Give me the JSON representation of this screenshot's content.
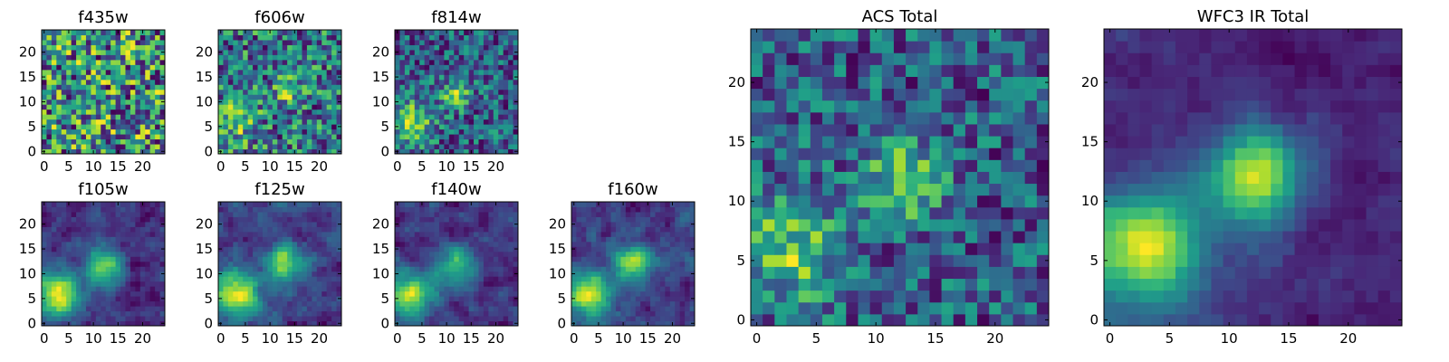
{
  "chart_data": [
    {
      "type": "heatmap",
      "title": "f435w",
      "colormap": "viridis",
      "xlim": [
        -0.5,
        24.5
      ],
      "ylim": [
        -0.5,
        24.5
      ],
      "xticks": [
        0,
        5,
        10,
        15,
        20
      ],
      "yticks": [
        0,
        5,
        10,
        15,
        20
      ],
      "peaks": [],
      "noise": 1.0,
      "smooth": 0,
      "grid": false
    },
    {
      "type": "heatmap",
      "title": "f606w",
      "colormap": "viridis",
      "xlim": [
        -0.5,
        24.5
      ],
      "ylim": [
        -0.5,
        24.5
      ],
      "xticks": [
        0,
        5,
        10,
        15,
        20
      ],
      "yticks": [
        0,
        5,
        10,
        15,
        20
      ],
      "peaks": [
        [
          3,
          6,
          0.35,
          3.0
        ],
        [
          13,
          12,
          0.3,
          2.0
        ]
      ],
      "noise": 0.85,
      "smooth": 0,
      "grid": false
    },
    {
      "type": "heatmap",
      "title": "f814w",
      "colormap": "viridis",
      "xlim": [
        -0.5,
        24.5
      ],
      "ylim": [
        -0.5,
        24.5
      ],
      "xticks": [
        0,
        5,
        10,
        15,
        20
      ],
      "yticks": [
        0,
        5,
        10,
        15,
        20
      ],
      "peaks": [
        [
          3,
          6,
          0.55,
          3.0
        ],
        [
          12,
          11.5,
          0.6,
          2.0
        ]
      ],
      "noise": 0.75,
      "smooth": 0,
      "grid": false
    },
    {
      "type": "heatmap",
      "title": "f105w",
      "colormap": "viridis",
      "xlim": [
        -0.5,
        24.5
      ],
      "ylim": [
        -0.5,
        24.5
      ],
      "xticks": [
        0,
        5,
        10,
        15,
        20
      ],
      "yticks": [
        0,
        5,
        10,
        15,
        20
      ],
      "peaks": [
        [
          3,
          6,
          0.9,
          3.2
        ],
        [
          12,
          11.5,
          0.8,
          2.5
        ]
      ],
      "noise": 0.55,
      "smooth": 1,
      "grid": false
    },
    {
      "type": "heatmap",
      "title": "f125w",
      "colormap": "viridis",
      "xlim": [
        -0.5,
        24.5
      ],
      "ylim": [
        -0.5,
        24.5
      ],
      "xticks": [
        0,
        5,
        10,
        15,
        20
      ],
      "yticks": [
        0,
        5,
        10,
        15,
        20
      ],
      "peaks": [
        [
          3,
          6,
          0.9,
          3.2
        ],
        [
          13,
          12,
          0.8,
          2.5
        ]
      ],
      "noise": 0.6,
      "smooth": 1,
      "grid": false
    },
    {
      "type": "heatmap",
      "title": "f140w",
      "colormap": "viridis",
      "xlim": [
        -0.5,
        24.5
      ],
      "ylim": [
        -0.5,
        24.5
      ],
      "xticks": [
        0,
        5,
        10,
        15,
        20
      ],
      "yticks": [
        0,
        5,
        10,
        15,
        20
      ],
      "peaks": [
        [
          3,
          6,
          0.9,
          3.2
        ],
        [
          12,
          11.5,
          0.8,
          2.5
        ]
      ],
      "noise": 0.6,
      "smooth": 1,
      "grid": false
    },
    {
      "type": "heatmap",
      "title": "f160w",
      "colormap": "viridis",
      "xlim": [
        -0.5,
        24.5
      ],
      "ylim": [
        -0.5,
        24.5
      ],
      "xticks": [
        0,
        5,
        10,
        15,
        20
      ],
      "yticks": [
        0,
        5,
        10,
        15,
        20
      ],
      "peaks": [
        [
          3,
          6,
          0.9,
          3.2
        ],
        [
          12,
          12,
          0.85,
          2.5
        ]
      ],
      "noise": 0.55,
      "smooth": 1,
      "grid": false
    },
    {
      "type": "heatmap",
      "title": "ACS Total",
      "colormap": "viridis",
      "xlim": [
        -0.5,
        24.5
      ],
      "ylim": [
        -0.5,
        24.5
      ],
      "xticks": [
        0,
        5,
        10,
        15,
        20
      ],
      "yticks": [
        0,
        5,
        10,
        15,
        20
      ],
      "peaks": [
        [
          3,
          6,
          0.55,
          3.0
        ],
        [
          12.5,
          11.5,
          0.65,
          2.2
        ]
      ],
      "noise": 0.7,
      "smooth": 0,
      "grid": false
    },
    {
      "type": "heatmap",
      "title": "WFC3 IR Total",
      "colormap": "viridis",
      "xlim": [
        -0.5,
        24.5
      ],
      "ylim": [
        -0.5,
        24.5
      ],
      "xticks": [
        0,
        5,
        10,
        15,
        20
      ],
      "yticks": [
        0,
        5,
        10,
        15,
        20
      ],
      "peaks": [
        [
          3,
          6,
          1.0,
          3.2
        ],
        [
          12,
          12,
          0.95,
          2.6
        ]
      ],
      "noise": 0.35,
      "smooth": 2,
      "grid": false
    }
  ]
}
